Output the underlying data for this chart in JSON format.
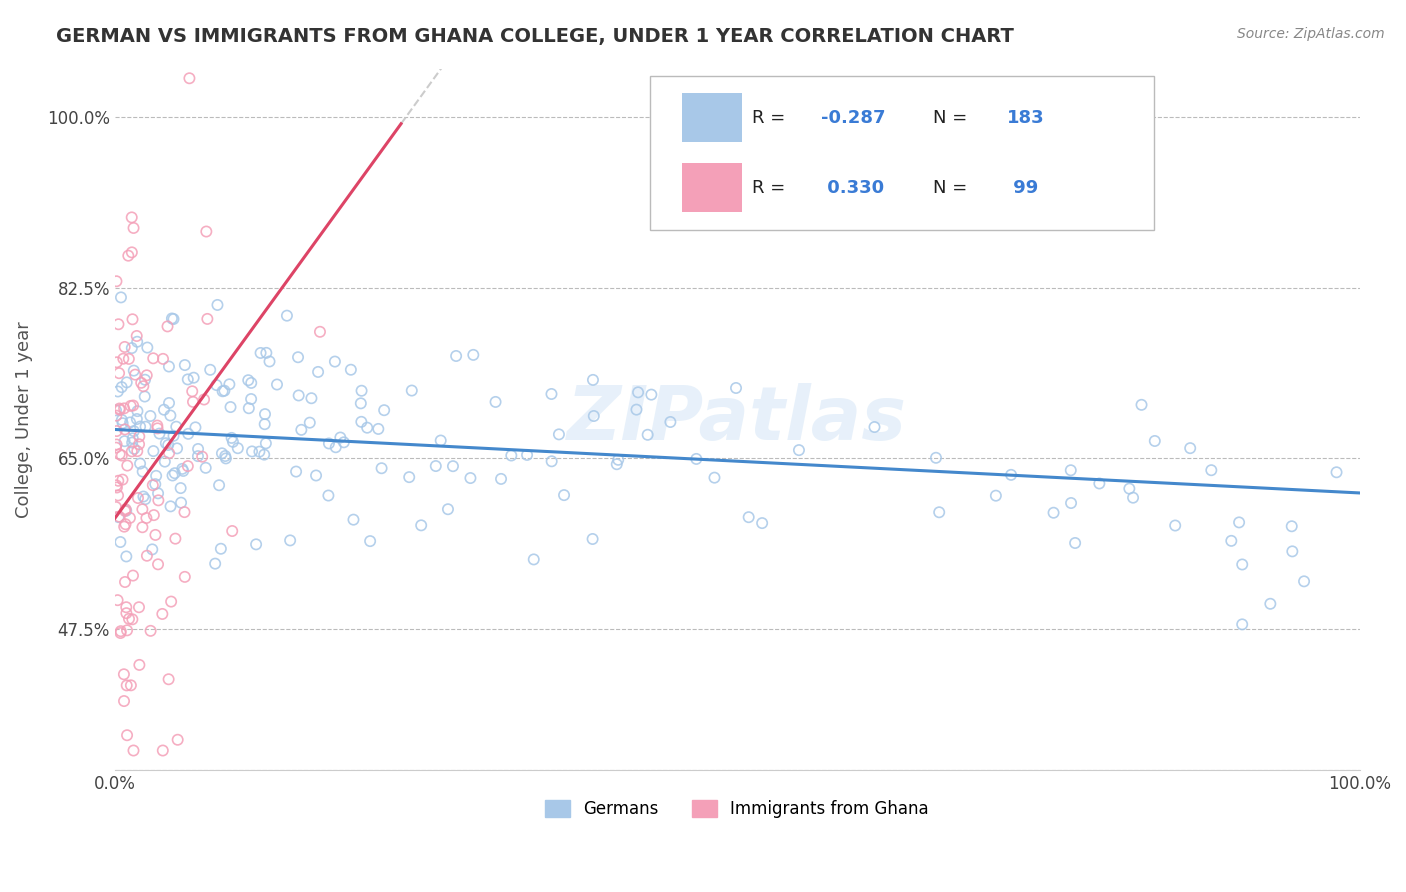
{
  "title": "GERMAN VS IMMIGRANTS FROM GHANA COLLEGE, UNDER 1 YEAR CORRELATION CHART",
  "source_text": "Source: ZipAtlas.com",
  "ylabel": "College, Under 1 year",
  "xmin": 0.0,
  "xmax": 1.0,
  "ymin": 0.33,
  "ymax": 1.05,
  "xtick_labels": [
    "0.0%",
    "100.0%"
  ],
  "ytick_labels": [
    "47.5%",
    "65.0%",
    "82.5%",
    "100.0%"
  ],
  "ytick_values": [
    0.475,
    0.65,
    0.825,
    1.0
  ],
  "legend_labels_bottom": [
    "Germans",
    "Immigrants from Ghana"
  ],
  "watermark": "ZIPatlas",
  "german_R": -0.287,
  "ghana_R": 0.33,
  "german_N": 183,
  "ghana_N": 99,
  "german_color": "#a8c8e8",
  "ghana_color": "#f4a0b8",
  "trendline_german_color": "#4488cc",
  "trendline_ghana_color": "#dd4466",
  "background_color": "#ffffff",
  "grid_color": "#bbbbbb",
  "title_color": "#333333",
  "axis_label_color": "#555555",
  "source_color": "#888888",
  "legend_text_color": "#222222",
  "legend_value_color": "#3a7bd5"
}
